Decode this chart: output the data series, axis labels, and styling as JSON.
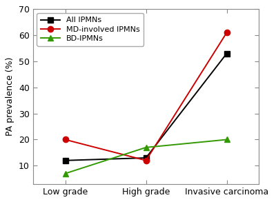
{
  "x_labels": [
    "Low grade",
    "High grade",
    "Invasive carcinoma"
  ],
  "series": [
    {
      "label": "All IPMNs",
      "values": [
        12,
        13,
        53
      ],
      "color": "#000000",
      "marker": "s",
      "linestyle": "-"
    },
    {
      "label": "MD-involved IPMNs",
      "values": [
        20,
        12,
        61
      ],
      "color": "#cc0000",
      "marker": "o",
      "linestyle": "-"
    },
    {
      "label": "BD-IPMNs",
      "values": [
        7,
        17,
        20
      ],
      "color": "#339900",
      "marker": "^",
      "linestyle": "-"
    }
  ],
  "ylabel": "PA prevalence (%)",
  "ylim": [
    3,
    70
  ],
  "yticks": [
    10,
    20,
    30,
    40,
    50,
    60,
    70
  ],
  "legend_loc": "upper left",
  "background_color": "#ffffff",
  "markersize": 6,
  "linewidth": 1.4,
  "axis_fontsize": 9,
  "tick_fontsize": 9,
  "legend_fontsize": 8
}
